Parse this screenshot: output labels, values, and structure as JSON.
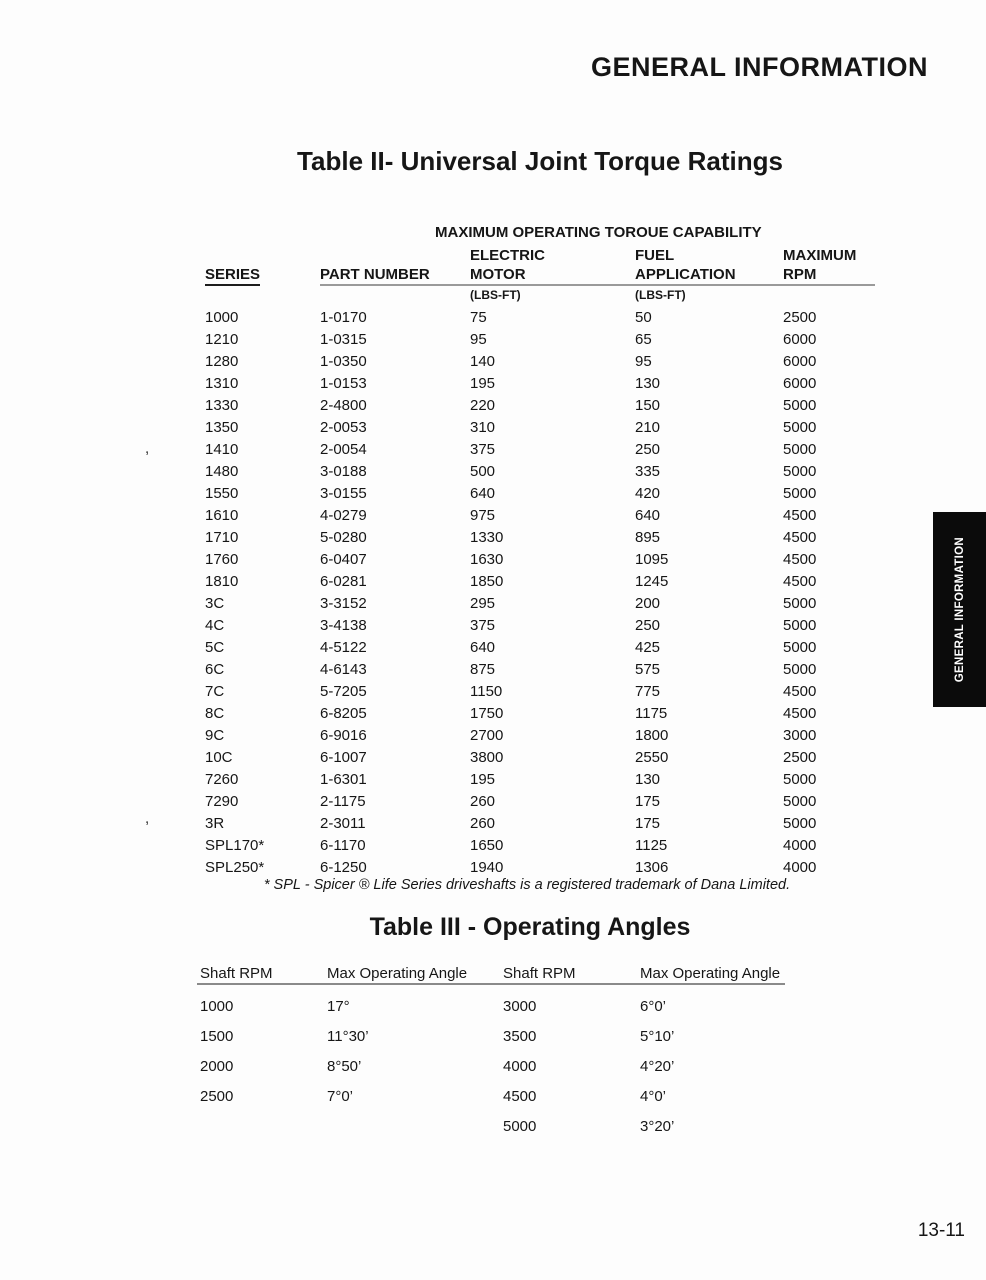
{
  "page": {
    "header_title": "GENERAL INFORMATION",
    "side_tab_label": "GENERAL INFORMATION",
    "page_number": "13-11",
    "margin_marks": {
      "mark1": ",",
      "mark2": ","
    }
  },
  "torque_table": {
    "title": "Table II- Universal Joint Torque Ratings",
    "group_header": "MAXIMUM OPERATING TOROUE CAPABILITY",
    "col_top": [
      "ELECTRIC",
      "FUEL",
      "MAXIMUM"
    ],
    "headers": [
      "SERIES",
      "PART NUMBER",
      "MOTOR",
      "APPLICATION",
      "RPM"
    ],
    "units": [
      "(LBS-FT)",
      "(LBS-FT)"
    ],
    "rows": [
      [
        "1000",
        "1-0170",
        "75",
        "50",
        "2500"
      ],
      [
        "1210",
        "1-0315",
        "95",
        "65",
        "6000"
      ],
      [
        "1280",
        "1-0350",
        "140",
        "95",
        "6000"
      ],
      [
        "1310",
        "1-0153",
        "195",
        "130",
        "6000"
      ],
      [
        "1330",
        "2-4800",
        "220",
        "150",
        "5000"
      ],
      [
        "1350",
        "2-0053",
        "310",
        "210",
        "5000"
      ],
      [
        "1410",
        "2-0054",
        "375",
        "250",
        "5000"
      ],
      [
        "1480",
        "3-0188",
        "500",
        "335",
        "5000"
      ],
      [
        "1550",
        "3-0155",
        "640",
        "420",
        "5000"
      ],
      [
        "1610",
        "4-0279",
        "975",
        "640",
        "4500"
      ],
      [
        "1710",
        "5-0280",
        "1330",
        "895",
        "4500"
      ],
      [
        "1760",
        "6-0407",
        "1630",
        "1095",
        "4500"
      ],
      [
        "1810",
        "6-0281",
        "1850",
        "1245",
        "4500"
      ],
      [
        "3C",
        "3-3152",
        "295",
        "200",
        "5000"
      ],
      [
        "4C",
        "3-4138",
        "375",
        "250",
        "5000"
      ],
      [
        "5C",
        "4-5122",
        "640",
        "425",
        "5000"
      ],
      [
        "6C",
        "4-6143",
        "875",
        "575",
        "5000"
      ],
      [
        "7C",
        "5-7205",
        "1150",
        "775",
        "4500"
      ],
      [
        "8C",
        "6-8205",
        "1750",
        "1175",
        "4500"
      ],
      [
        "9C",
        "6-9016",
        "2700",
        "1800",
        "3000"
      ],
      [
        "10C",
        "6-1007",
        "3800",
        "2550",
        "2500"
      ],
      [
        "7260",
        "1-6301",
        "195",
        "130",
        "5000"
      ],
      [
        "7290",
        "2-1175",
        "260",
        "175",
        "5000"
      ],
      [
        "3R",
        "2-3011",
        "260",
        "175",
        "5000"
      ],
      [
        "SPL170*",
        "6-1170",
        "1650",
        "1125",
        "4000"
      ],
      [
        "SPL250*",
        "6-1250",
        "1940",
        "1306",
        "4000"
      ]
    ],
    "footnote": "* SPL - Spicer ® Life Series driveshafts is a registered trademark of Dana Limited."
  },
  "angles_table": {
    "title": "Table III - Operating Angles",
    "headers": [
      "Shaft RPM",
      "Max Operating Angle",
      "Shaft RPM",
      "Max Operating Angle"
    ],
    "rows": [
      [
        "1000",
        "17°",
        "3000",
        "6°0’"
      ],
      [
        "1500",
        "11°30’",
        "3500",
        "5°10’"
      ],
      [
        "2000",
        "8°50’",
        "4000",
        "4°20’"
      ],
      [
        "2500",
        "7°0’",
        "4500",
        "4°0’"
      ],
      [
        "",
        "",
        "5000",
        "3°20’"
      ]
    ]
  }
}
